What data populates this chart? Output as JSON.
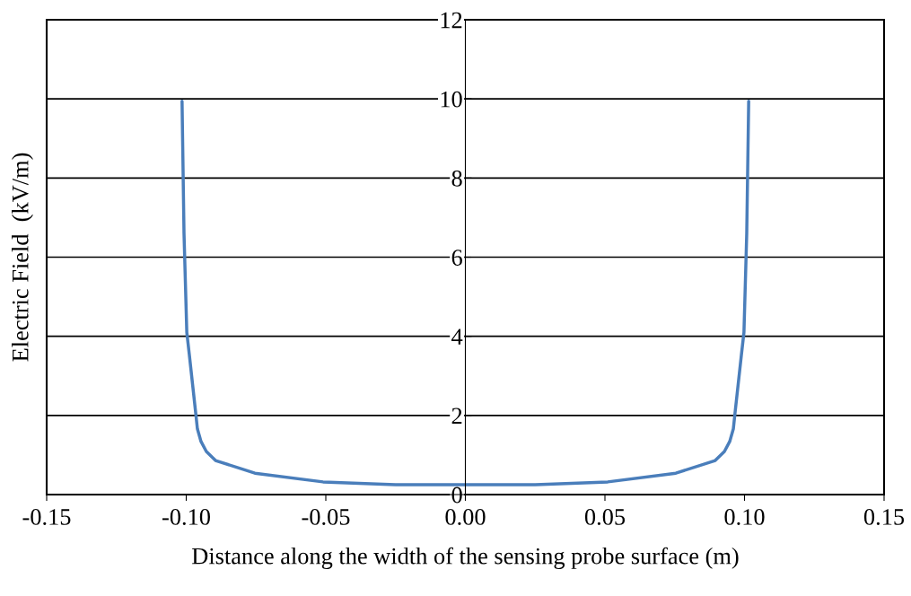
{
  "chart_data": {
    "type": "line",
    "xlabel": "Distance along the width of the sensing probe surface (m)",
    "ylabel": "Electric Field  (kV/m)",
    "xlim": [
      -0.15,
      0.15
    ],
    "xticks": [
      {
        "value": -0.15,
        "label": "-0.15"
      },
      {
        "value": -0.1,
        "label": "-0.10"
      },
      {
        "value": -0.05,
        "label": "-0.05"
      },
      {
        "value": 0,
        "label": "0.00"
      },
      {
        "value": 0.05,
        "label": "0.05"
      },
      {
        "value": 0.1,
        "label": "0.10"
      },
      {
        "value": 0.15,
        "label": "0.15"
      }
    ],
    "ylim": [
      0,
      12
    ],
    "yticks": [
      0,
      2,
      4,
      6,
      8,
      10,
      12
    ],
    "grid": "y",
    "legend": false,
    "marker": "none",
    "line_style": "solid",
    "series": [
      {
        "color": "#4a7ebb",
        "x": [
          -0.1015,
          -0.1008,
          -0.0998,
          -0.0989,
          -0.0966,
          -0.096,
          -0.0947,
          -0.0928,
          -0.0895,
          -0.0754,
          -0.051,
          -0.025,
          0,
          0.025,
          0.051,
          0.0754,
          0.0895,
          0.0928,
          0.0947,
          0.096,
          0.0966,
          0.0989,
          0.0998,
          0.1008,
          0.1015
        ],
        "values": [
          9.94,
          6.6,
          4.1,
          3.54,
          2.06,
          1.66,
          1.34,
          1.09,
          0.86,
          0.54,
          0.32,
          0.25,
          0.25,
          0.25,
          0.32,
          0.54,
          0.86,
          1.09,
          1.34,
          1.66,
          2.06,
          3.54,
          4.1,
          6.6,
          9.94
        ]
      }
    ]
  }
}
